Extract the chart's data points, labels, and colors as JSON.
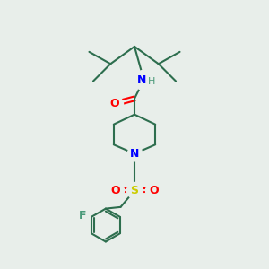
{
  "background_color": "#e8eeea",
  "bond_color": "#2d6e4e",
  "atom_colors": {
    "O": "#ff0000",
    "N": "#0000ff",
    "H": "#4a9a7a",
    "F": "#4a9a7a",
    "S": "#cccc00",
    "C": "#2d6e4e"
  },
  "figsize": [
    3.0,
    3.0
  ],
  "dpi": 100
}
